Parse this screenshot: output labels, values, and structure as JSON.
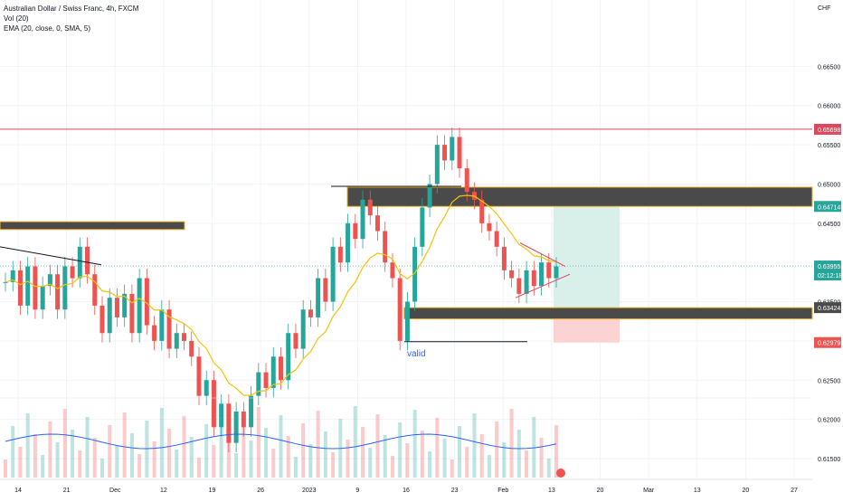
{
  "header": {
    "title": "Australian Dollar / Swiss Franc, 4h, FXCM",
    "indicator_1": "Vol (20)",
    "indicator_2": "EMA (20, close, 0, SMA, 5)"
  },
  "currency_label": "CHF",
  "colors": {
    "up": "#26a69a",
    "down": "#ef5350",
    "ema": "#f4c20d",
    "resistance_line": "#e0455e",
    "zone_fill": "#4a4a4a",
    "zone_border": "#f0b429",
    "volume_line": "#2962ff",
    "target_fill": "#d9efe9",
    "stop_fill": "#fbd3d3",
    "current_price": "#26a69a",
    "annotation": "#2962ff"
  },
  "price_labels": {
    "resistance": "0.65698",
    "zone_top": "0.64714",
    "current": "0.63955",
    "countdown": "02:12:18",
    "zone_bottom": "0.63424",
    "stop": "0.62979"
  },
  "annotation_text": "valid",
  "chart_data": {
    "type": "candlestick",
    "title": "Australian Dollar / Swiss Franc, 4h, FXCM",
    "price_axis": {
      "min": 0.6135,
      "max": 0.67,
      "ticks": [
        "0.66500",
        "0.66000",
        "0.65500",
        "0.65000",
        "0.64500",
        "0.64000",
        "0.63500",
        "0.63000",
        "0.62500",
        "0.62000",
        "0.61500"
      ]
    },
    "time_axis_labels": [
      "14",
      "21",
      "Dec",
      "12",
      "19",
      "26",
      "2023",
      "9",
      "16",
      "23",
      "Feb",
      "13",
      "20",
      "Mar",
      "13",
      "20",
      "27"
    ],
    "close_path": [
      0.6375,
      0.639,
      0.6345,
      0.6395,
      0.634,
      0.637,
      0.6385,
      0.634,
      0.6395,
      0.638,
      0.642,
      0.6385,
      0.6345,
      0.631,
      0.6355,
      0.633,
      0.636,
      0.631,
      0.638,
      0.632,
      0.63,
      0.634,
      0.629,
      0.631,
      0.63,
      0.628,
      0.623,
      0.625,
      0.619,
      0.622,
      0.617,
      0.621,
      0.619,
      0.623,
      0.626,
      0.624,
      0.628,
      0.625,
      0.631,
      0.629,
      0.634,
      0.633,
      0.638,
      0.635,
      0.642,
      0.64,
      0.645,
      0.643,
      0.648,
      0.646,
      0.644,
      0.64,
      0.638,
      0.63,
      0.635,
      0.642,
      0.647,
      0.65,
      0.655,
      0.653,
      0.656,
      0.652,
      0.649,
      0.648,
      0.645,
      0.644,
      0.642,
      0.639,
      0.638,
      0.636,
      0.639,
      0.637,
      0.64,
      0.638,
      0.6395
    ],
    "ema_20": {
      "note": "EMA (20, close, 0, SMA, 5)"
    },
    "horizontal_levels": [
      {
        "name": "resistance",
        "price": 0.65698
      },
      {
        "name": "upper-zone",
        "from": 0.64714,
        "to": 0.6496
      },
      {
        "name": "left-zone",
        "from": 0.6442,
        "to": 0.6452
      },
      {
        "name": "lower-zone",
        "from": 0.6328,
        "to": 0.63424
      },
      {
        "name": "current",
        "price": 0.63955
      }
    ],
    "position": {
      "entry": 0.63424,
      "target": 0.64714,
      "stop": 0.62979
    }
  }
}
